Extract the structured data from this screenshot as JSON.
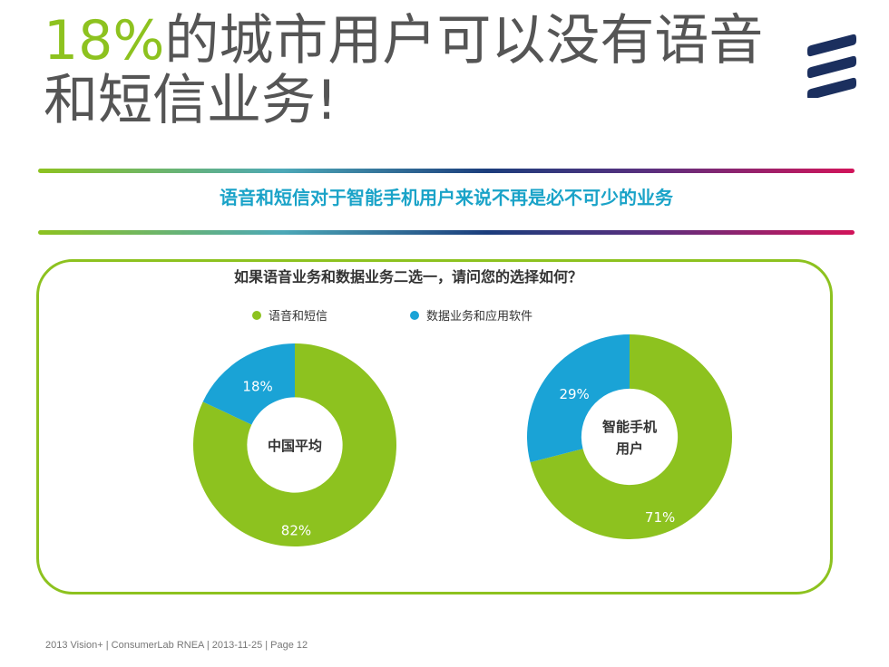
{
  "slide": {
    "title_pct": "18%",
    "title_rest": "的城市用户可以没有语音和短信业务!",
    "banner": "语音和短信对于智能手机用户来说不再是必不可少的业务",
    "footer": "2013 Vision+  |  ConsumerLab RNEA  |  2013-11-25  |  Page 12",
    "logo_icon": "ericsson-logo-icon"
  },
  "colors": {
    "green": "#8dc21f",
    "blue": "#1aa3d6",
    "accent": "#1aa3c8"
  },
  "chart_data": [
    {
      "type": "pie",
      "title": "如果语音业务和数据业务二选一，请问您的选择如何？",
      "center_label": "中国平均",
      "series": [
        {
          "name": "语音和短信",
          "value": 82,
          "label": "82%"
        },
        {
          "name": "数据业务和应用软件",
          "value": 18,
          "label": "18%"
        }
      ],
      "legend_position": "top"
    },
    {
      "type": "pie",
      "title": "如果语音业务和数据业务二选一，请问您的选择如何？",
      "center_label": "智能手机\n用户",
      "series": [
        {
          "name": "语音和短信",
          "value": 71,
          "label": "71%"
        },
        {
          "name": "数据业务和应用软件",
          "value": 29,
          "label": "29%"
        }
      ],
      "legend_position": "top"
    }
  ]
}
